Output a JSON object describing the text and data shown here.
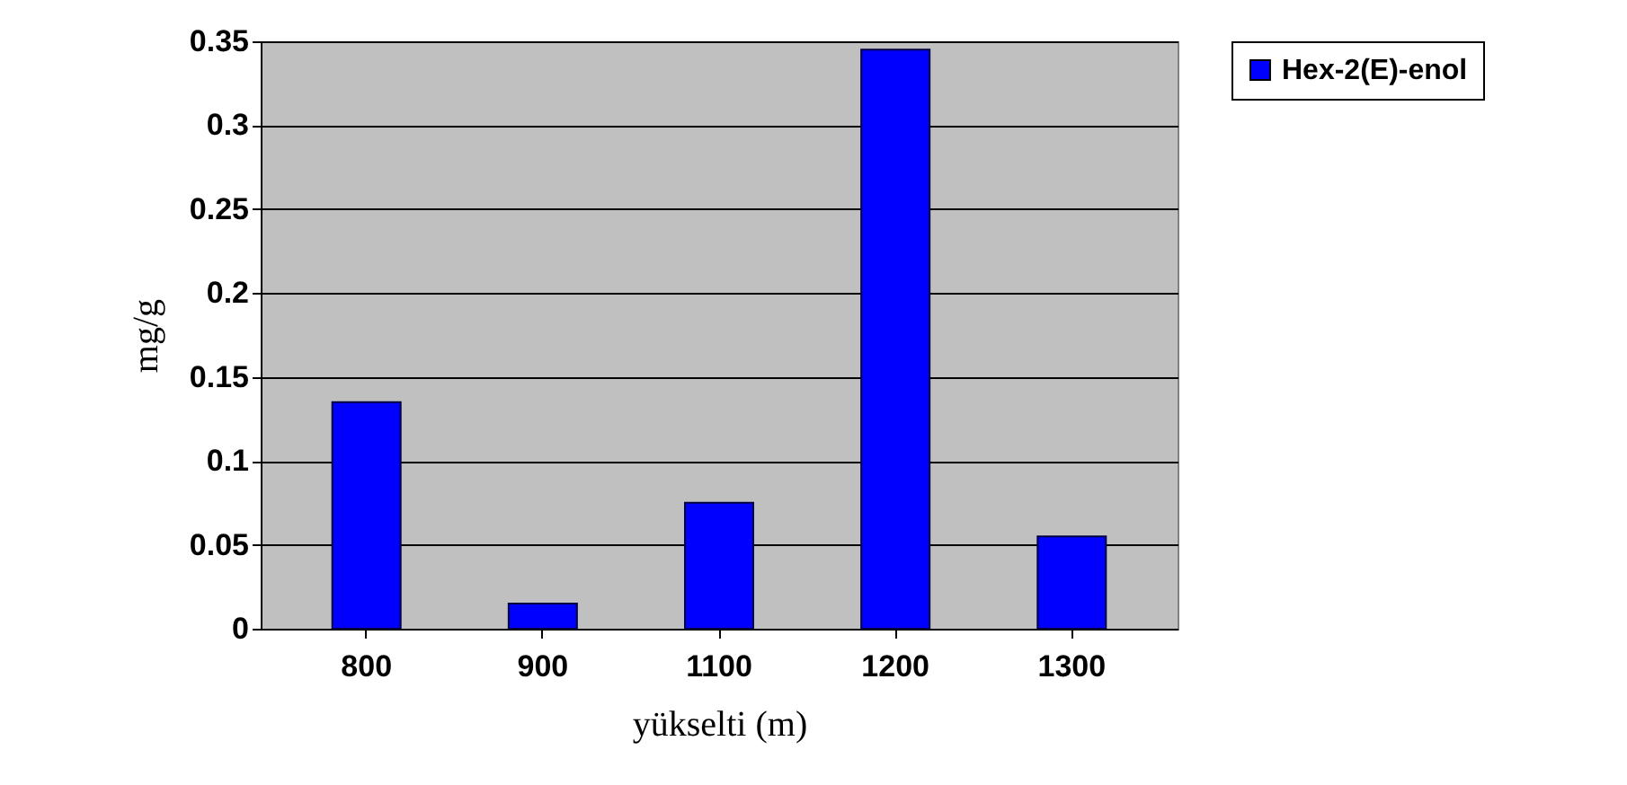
{
  "chart_data": {
    "type": "bar",
    "xlabel": "yükselti (m)",
    "ylabel": "mg/g",
    "categories": [
      "800",
      "900",
      "1100",
      "1200",
      "1300"
    ],
    "series": [
      {
        "name": "Hex-2(E)-enol",
        "color": "#0000ff",
        "values": [
          0.135,
          0.015,
          0.075,
          0.345,
          0.055
        ]
      }
    ],
    "ylim": [
      0,
      0.35
    ],
    "yticks": [
      0,
      0.05,
      0.1,
      0.15,
      0.2,
      0.25,
      0.3,
      0.35
    ],
    "grid": "y",
    "legend": "right"
  }
}
